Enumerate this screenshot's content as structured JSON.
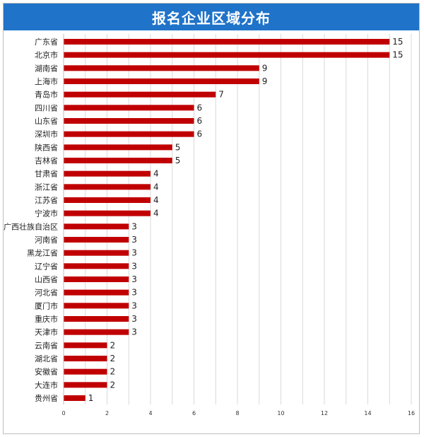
{
  "chart_data": {
    "type": "bar",
    "orientation": "horizontal",
    "title": "报名企业区域分布",
    "categories": [
      "广东省",
      "北京市",
      "湖南省",
      "上海市",
      "青岛市",
      "四川省",
      "山东省",
      "深圳市",
      "陕西省",
      "吉林省",
      "甘肃省",
      "浙江省",
      "江苏省",
      "宁波市",
      "广西壮族自治区",
      "河南省",
      "黑龙江省",
      "辽宁省",
      "山西省",
      "河北省",
      "厦门市",
      "重庆市",
      "天津市",
      "云南省",
      "湖北省",
      "安徽省",
      "大连市",
      "贵州省"
    ],
    "values": [
      15,
      15,
      9,
      9,
      7,
      6,
      6,
      6,
      5,
      5,
      4,
      4,
      4,
      4,
      3,
      3,
      3,
      3,
      3,
      3,
      3,
      3,
      3,
      2,
      2,
      2,
      2,
      1
    ],
    "xlim": [
      0,
      16
    ],
    "xticks": [
      "0",
      "2",
      "4",
      "6",
      "8",
      "10",
      "12",
      "14",
      "16"
    ],
    "grid": true,
    "legend": "none",
    "bar_color": "#c00000",
    "title_bg_color": "#1f73c9"
  }
}
